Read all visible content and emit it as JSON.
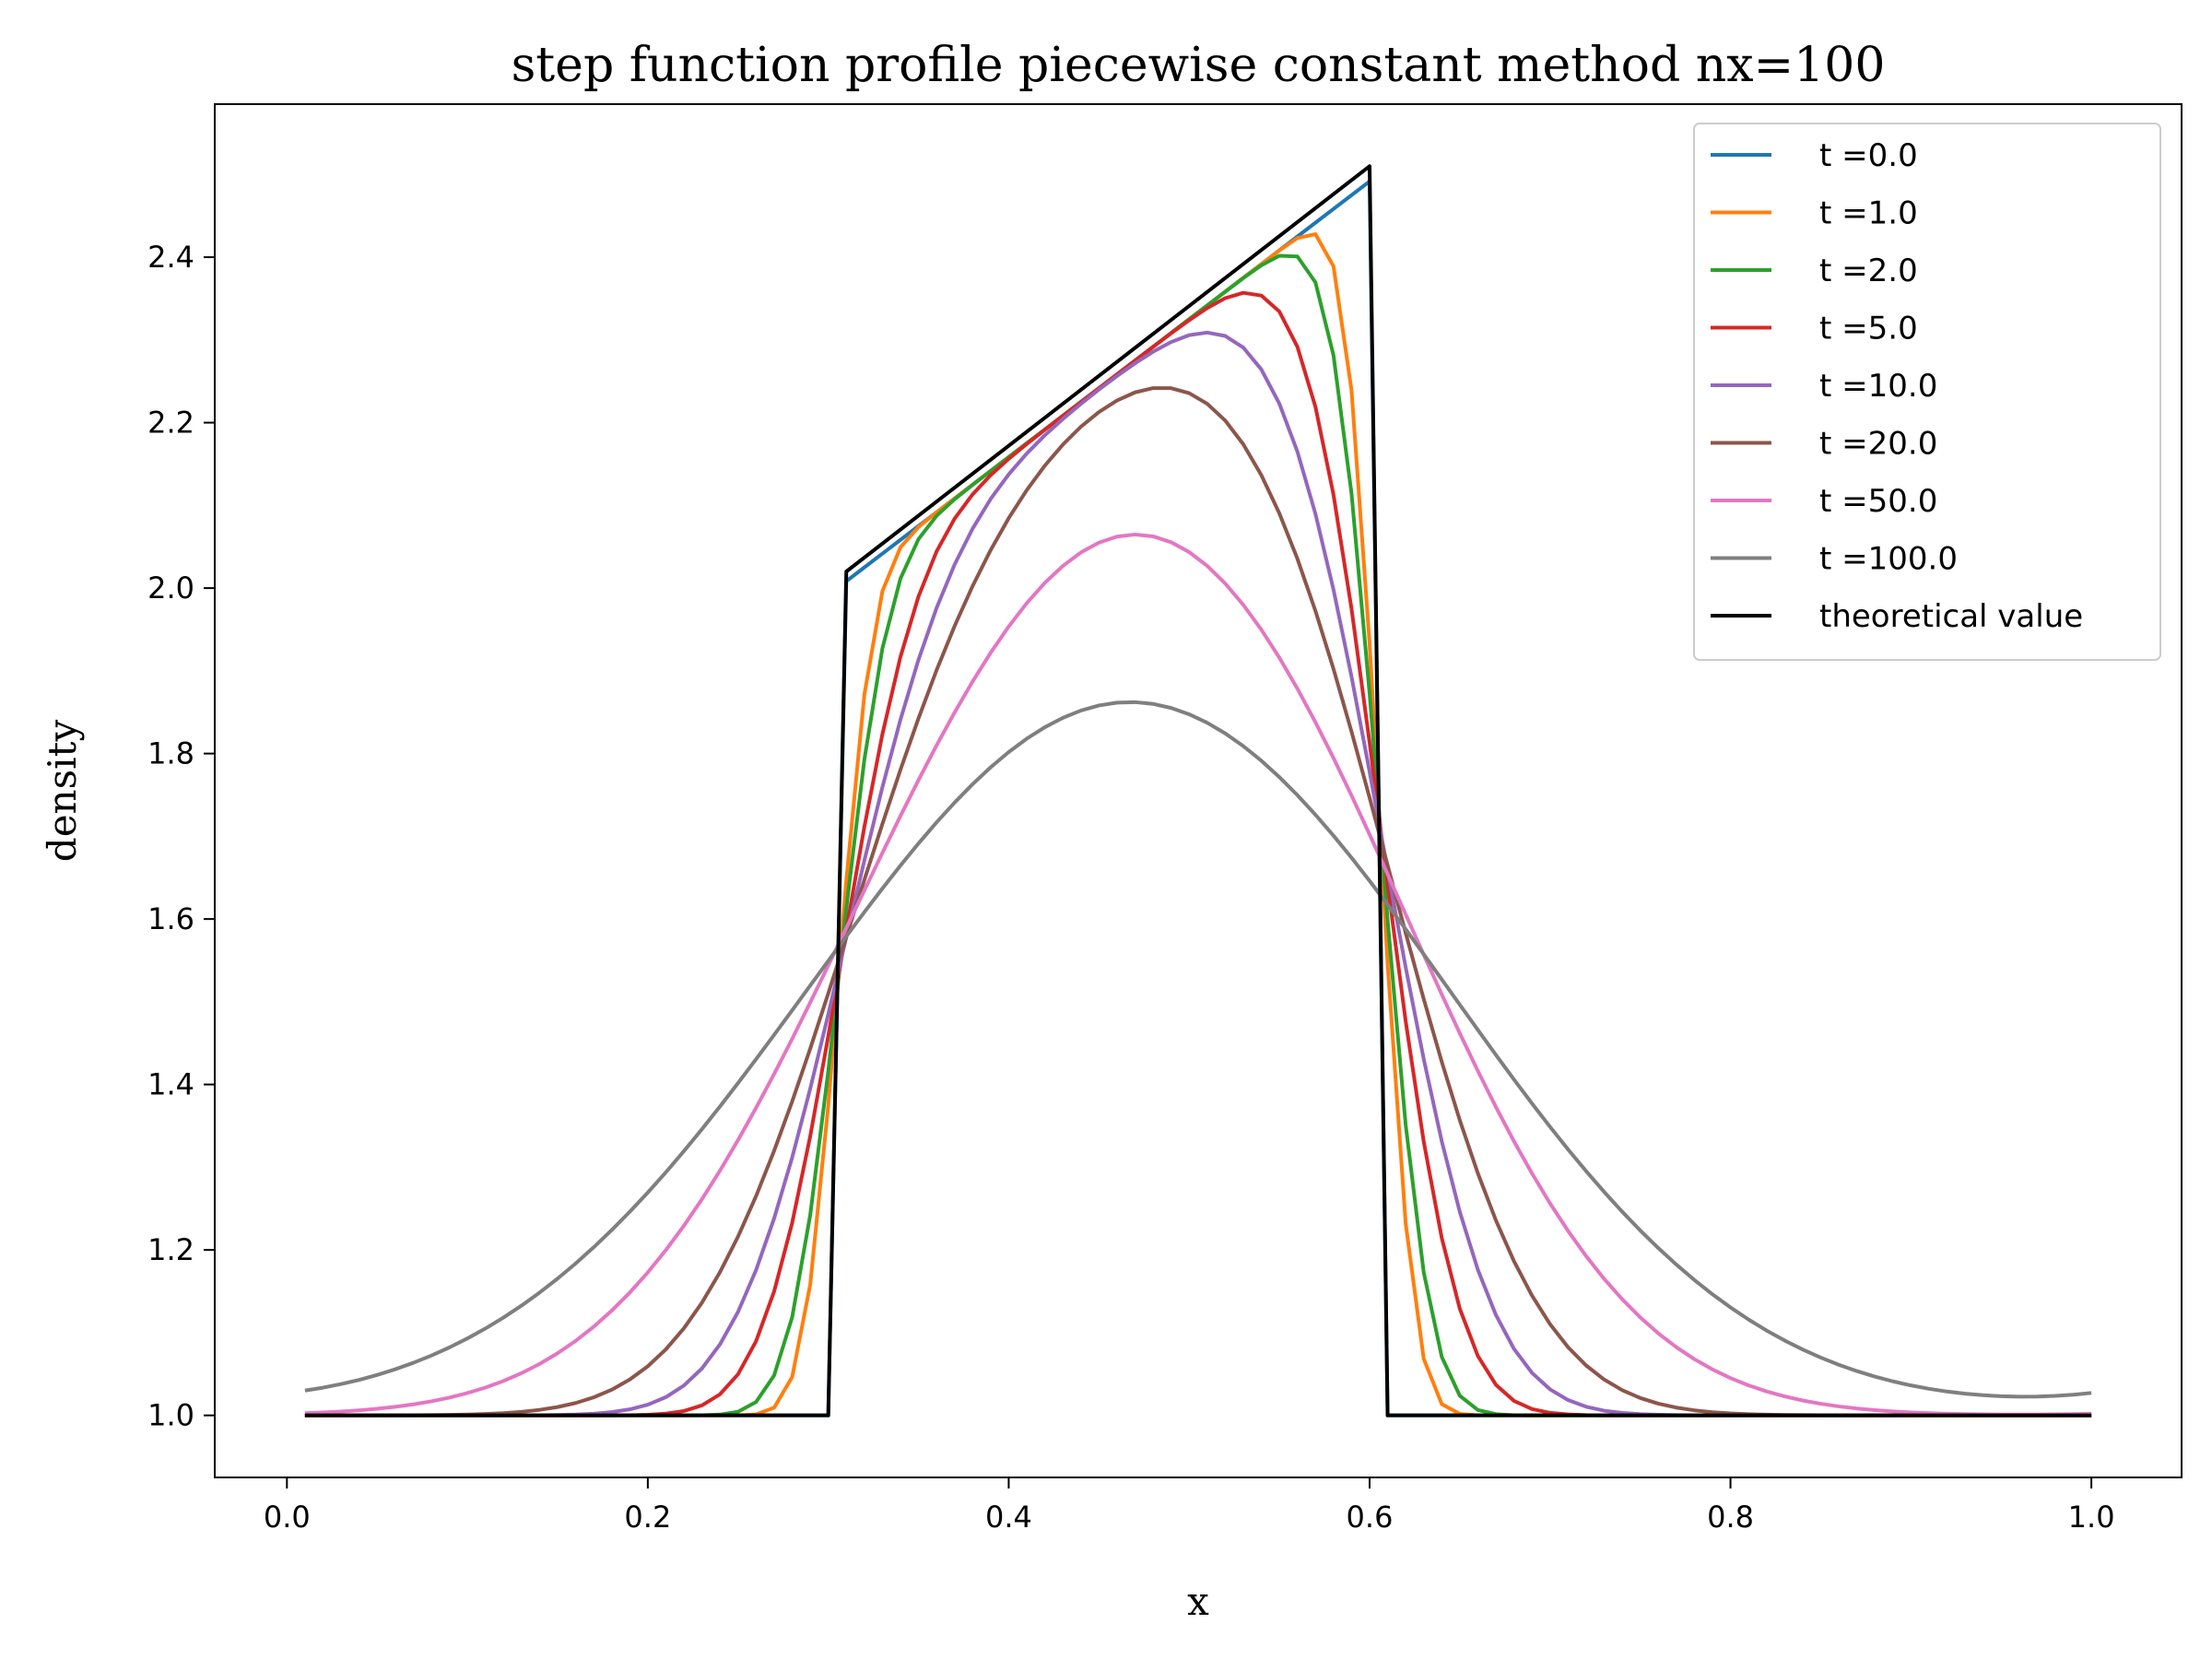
{
  "chart_data": {
    "type": "line",
    "title": "step function profile piecewise constant method nx=100",
    "xlabel": "x",
    "ylabel": "density",
    "xlim": [
      -0.04,
      1.05
    ],
    "ylim": [
      0.925,
      2.585
    ],
    "xticks": [
      0.0,
      0.2,
      0.4,
      0.6,
      0.8,
      1.0
    ],
    "xtick_labels": [
      "0.0",
      "0.2",
      "0.4",
      "0.6",
      "0.8",
      "1.0"
    ],
    "yticks": [
      1.0,
      1.2,
      1.4,
      1.6,
      1.8,
      2.0,
      2.2,
      2.4
    ],
    "ytick_labels": [
      "1.0",
      "1.2",
      "1.4",
      "1.6",
      "1.8",
      "2.0",
      "2.2",
      "2.4"
    ],
    "grid": false,
    "legend_position": "top-right",
    "series": [
      {
        "name": "t =0.0",
        "color": "#1f77b4",
        "kind": "diffused",
        "t": 0.0
      },
      {
        "name": "t =1.0",
        "color": "#ff7f0e",
        "kind": "diffused",
        "t": 1.0
      },
      {
        "name": "t =2.0",
        "color": "#2ca02c",
        "kind": "diffused",
        "t": 2.0
      },
      {
        "name": "t =5.0",
        "color": "#d62728",
        "kind": "diffused",
        "t": 5.0
      },
      {
        "name": "t =10.0",
        "color": "#9467bd",
        "kind": "diffused",
        "t": 10.0
      },
      {
        "name": "t =20.0",
        "color": "#8c564b",
        "kind": "diffused",
        "t": 20.0
      },
      {
        "name": "t =50.0",
        "color": "#e377c2",
        "kind": "diffused",
        "t": 50.0
      },
      {
        "name": "t =100.0",
        "color": "#7f7f7f",
        "kind": "diffused",
        "t": 100.0
      },
      {
        "name": "theoretical value",
        "color": "#000000",
        "kind": "theory",
        "x": [
          0.01,
          0.3,
          0.31,
          0.6,
          0.61,
          1.0
        ],
        "y": [
          1.0,
          1.0,
          2.02,
          2.51,
          1.0,
          1.0
        ]
      }
    ]
  }
}
